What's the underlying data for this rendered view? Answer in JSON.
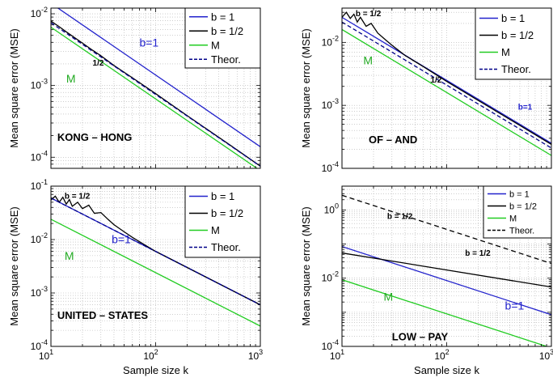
{
  "chart_data": [
    {
      "type": "line",
      "log_x": true,
      "log_y": true,
      "xlim": [
        10,
        1000
      ],
      "ylim": [
        7e-05,
        0.012
      ],
      "y_ticks": [
        {
          "v": 0.01,
          "m": "10",
          "e": "-2"
        },
        {
          "v": 0.001,
          "m": "10",
          "e": "-3"
        },
        {
          "v": 0.0001,
          "m": "10",
          "e": "-4"
        }
      ],
      "x_ticks": [],
      "xlabel": "",
      "ylabel": "Mean square error (MSE)",
      "grid": true,
      "legend_position": "top-right",
      "legend_font": 13,
      "legend": [
        "b = 1",
        "b = 1/2",
        "M",
        "Theor."
      ],
      "series": [
        {
          "name": "b = 1",
          "color": "#2222cc",
          "dash": "none",
          "x": [
            10,
            1000
          ],
          "y": [
            0.014,
            0.00014
          ]
        },
        {
          "name": "b = 1/2",
          "color": "#000000",
          "dash": "none",
          "x": [
            10,
            12,
            14,
            17,
            20,
            25,
            30,
            40,
            60,
            100,
            200,
            500,
            1000
          ],
          "y": [
            0.0079,
            0.0066,
            0.0056,
            0.0046,
            0.0039,
            0.0031,
            0.0026,
            0.0019,
            0.00128,
            0.00077,
            0.00038,
            0.000152,
            7.5e-05
          ]
        },
        {
          "name": "M",
          "color": "#22cc22",
          "dash": "none",
          "x": [
            10,
            1000
          ],
          "y": [
            0.0065,
            6.5e-05
          ]
        },
        {
          "name": "Theor.",
          "color": "#000088",
          "dash": "5,3",
          "x": [
            10,
            1000
          ],
          "y": [
            0.0075,
            7.5e-05
          ]
        }
      ],
      "annotations": [
        {
          "text": "b=1",
          "x": 70,
          "y": 0.0035,
          "color": "#2222cc",
          "bold": false,
          "size": 14
        },
        {
          "text": "1/2",
          "x": 25,
          "y": 0.0019,
          "color": "#000000",
          "bold": true,
          "size": 10
        },
        {
          "text": "M",
          "x": 14,
          "y": 0.0011,
          "color": "#22aa22",
          "bold": false,
          "size": 14
        },
        {
          "text": "KONG – HONG",
          "x": 11.5,
          "y": 0.00017,
          "color": "#000000",
          "bold": true,
          "size": 13
        }
      ]
    },
    {
      "type": "line",
      "log_x": true,
      "log_y": true,
      "xlim": [
        10,
        1000
      ],
      "ylim": [
        0.0001,
        0.035
      ],
      "y_ticks": [
        {
          "v": 0.01,
          "m": "10",
          "e": "-2"
        },
        {
          "v": 0.001,
          "m": "10",
          "e": "-3"
        },
        {
          "v": 0.0001,
          "m": "10",
          "e": "-4"
        }
      ],
      "x_ticks": [],
      "xlabel": "",
      "ylabel": "Mean square error (MSE)",
      "grid": true,
      "legend_position": "top-right",
      "legend_font": 13,
      "legend": [
        "b = 1",
        "b = 1/2",
        "M",
        "Theor."
      ],
      "series": [
        {
          "name": "b = 1",
          "color": "#2222cc",
          "dash": "none",
          "x": [
            10,
            1000
          ],
          "y": [
            0.025,
            0.00025
          ]
        },
        {
          "name": "b = 1/2",
          "color": "#000000",
          "dash": "none",
          "x": [
            10,
            11,
            12,
            13,
            14,
            15,
            17,
            19,
            22,
            26,
            30,
            40,
            60,
            100,
            200,
            500,
            1000
          ],
          "y": [
            0.025,
            0.03,
            0.024,
            0.028,
            0.021,
            0.025,
            0.018,
            0.02,
            0.014,
            0.011,
            0.009,
            0.0062,
            0.0041,
            0.0024,
            0.0012,
            0.00048,
            0.00024
          ]
        },
        {
          "name": "M",
          "color": "#22cc22",
          "dash": "none",
          "x": [
            10,
            1000
          ],
          "y": [
            0.016,
            0.00016
          ]
        },
        {
          "name": "Theor.",
          "color": "#000088",
          "dash": "5,3",
          "x": [
            10,
            1000
          ],
          "y": [
            0.021,
            0.00021
          ]
        }
      ],
      "annotations": [
        {
          "text": "b = 1/2",
          "x": 13.5,
          "y": 0.026,
          "color": "#000000",
          "bold": true,
          "size": 10
        },
        {
          "text": "M",
          "x": 16,
          "y": 0.0045,
          "color": "#22aa22",
          "bold": false,
          "size": 14
        },
        {
          "text": "1/2",
          "x": 70,
          "y": 0.0023,
          "color": "#000000",
          "bold": true,
          "size": 10
        },
        {
          "text": "b=1",
          "x": 480,
          "y": 0.00085,
          "color": "#2222cc",
          "bold": true,
          "size": 10
        },
        {
          "text": "OF – AND",
          "x": 18,
          "y": 0.00025,
          "color": "#000000",
          "bold": true,
          "size": 13
        }
      ]
    },
    {
      "type": "line",
      "log_x": true,
      "log_y": true,
      "xlim": [
        10,
        1000
      ],
      "ylim": [
        0.0001,
        0.1
      ],
      "y_ticks": [
        {
          "v": 0.1,
          "m": "10",
          "e": "-1"
        },
        {
          "v": 0.01,
          "m": "10",
          "e": "-2"
        },
        {
          "v": 0.001,
          "m": "10",
          "e": "-3"
        },
        {
          "v": 0.0001,
          "m": "10",
          "e": "-4"
        }
      ],
      "x_ticks": [
        {
          "v": 10,
          "m": "10",
          "e": "1"
        },
        {
          "v": 100,
          "m": "10",
          "e": "2"
        },
        {
          "v": 1000,
          "m": "10",
          "e": "3"
        }
      ],
      "xlabel": "Sample size k",
      "ylabel": "Mean square error (MSE)",
      "grid": true,
      "legend_position": "top-right",
      "legend_font": 13,
      "legend": [
        "b = 1",
        "b = 1/2",
        "M",
        "Theor."
      ],
      "series": [
        {
          "name": "b = 1",
          "color": "#2222cc",
          "dash": "none",
          "x": [
            10,
            1000
          ],
          "y": [
            0.06,
            0.0006
          ]
        },
        {
          "name": "b = 1/2",
          "color": "#000000",
          "dash": "none",
          "x": [
            10,
            11,
            12,
            13,
            14,
            15,
            16,
            18,
            20,
            23,
            26,
            30,
            35,
            40,
            50,
            60,
            80,
            100,
            200,
            500,
            1000
          ],
          "y": [
            0.055,
            0.065,
            0.05,
            0.062,
            0.046,
            0.056,
            0.042,
            0.05,
            0.038,
            0.044,
            0.031,
            0.032,
            0.024,
            0.019,
            0.014,
            0.011,
            0.0078,
            0.006,
            0.003,
            0.0012,
            0.0006
          ]
        },
        {
          "name": "M",
          "color": "#22cc22",
          "dash": "none",
          "x": [
            10,
            1000
          ],
          "y": [
            0.024,
            0.00024
          ]
        },
        {
          "name": "Theor.",
          "color": "#000088",
          "dash": "5,3",
          "x": [
            10,
            1000
          ],
          "y": [
            0.06,
            0.0006
          ]
        }
      ],
      "annotations": [
        {
          "text": "b = 1/2",
          "x": 13.5,
          "y": 0.058,
          "color": "#000000",
          "bold": true,
          "size": 10
        },
        {
          "text": "b=1",
          "x": 38,
          "y": 0.0085,
          "color": "#2222cc",
          "bold": false,
          "size": 14
        },
        {
          "text": "M",
          "x": 13.5,
          "y": 0.0042,
          "color": "#22aa22",
          "bold": false,
          "size": 14
        },
        {
          "text": "UNITED – STATES",
          "x": 11.5,
          "y": 0.00033,
          "color": "#000000",
          "bold": true,
          "size": 13
        }
      ]
    },
    {
      "type": "line",
      "log_x": true,
      "log_y": true,
      "xlim": [
        10,
        1000
      ],
      "ylim": [
        0.0001,
        5
      ],
      "y_ticks": [
        {
          "v": 1,
          "m": "10",
          "e": "0"
        },
        {
          "v": 0.01,
          "m": "10",
          "e": "-2"
        },
        {
          "v": 0.0001,
          "m": "10",
          "e": "-4"
        }
      ],
      "x_ticks": [
        {
          "v": 10,
          "m": "10",
          "e": "1"
        },
        {
          "v": 100,
          "m": "10",
          "e": "2"
        },
        {
          "v": 1000,
          "m": "10",
          "e": "3"
        }
      ],
      "xlabel": "Sample size k",
      "ylabel": "Mean square error (MSE)",
      "grid": true,
      "legend_position": "top-right",
      "legend_font": 11,
      "legend": [
        "b = 1",
        "b = 1/2",
        "M",
        "Theor."
      ],
      "series": [
        {
          "name": "b = 1",
          "color": "#2222cc",
          "dash": "none",
          "x": [
            10,
            1000
          ],
          "y": [
            0.085,
            0.00085
          ]
        },
        {
          "name": "b = 1/2",
          "color": "#000000",
          "dash": "none",
          "x": [
            10,
            1000
          ],
          "y": [
            0.055,
            0.0055
          ]
        },
        {
          "name": "M",
          "color": "#22cc22",
          "dash": "none",
          "x": [
            10,
            1000
          ],
          "y": [
            0.009,
            9e-05
          ]
        },
        {
          "name": "Theor.",
          "color": "#000000",
          "dash": "6,4",
          "x": [
            10,
            1000
          ],
          "y": [
            2.7,
            0.027
          ]
        }
      ],
      "annotations": [
        {
          "text": "b = 1/2",
          "x": 27,
          "y": 0.55,
          "color": "#000000",
          "bold": true,
          "size": 10
        },
        {
          "text": "b = 1/2",
          "x": 150,
          "y": 0.045,
          "color": "#000000",
          "bold": true,
          "size": 10
        },
        {
          "text": "M",
          "x": 25,
          "y": 0.0022,
          "color": "#22aa22",
          "bold": false,
          "size": 14
        },
        {
          "text": "b=1",
          "x": 360,
          "y": 0.0012,
          "color": "#2222cc",
          "bold": false,
          "size": 14
        },
        {
          "text": "LOW – PAY",
          "x": 30,
          "y": 0.00015,
          "color": "#000000",
          "bold": true,
          "size": 13
        }
      ]
    }
  ]
}
